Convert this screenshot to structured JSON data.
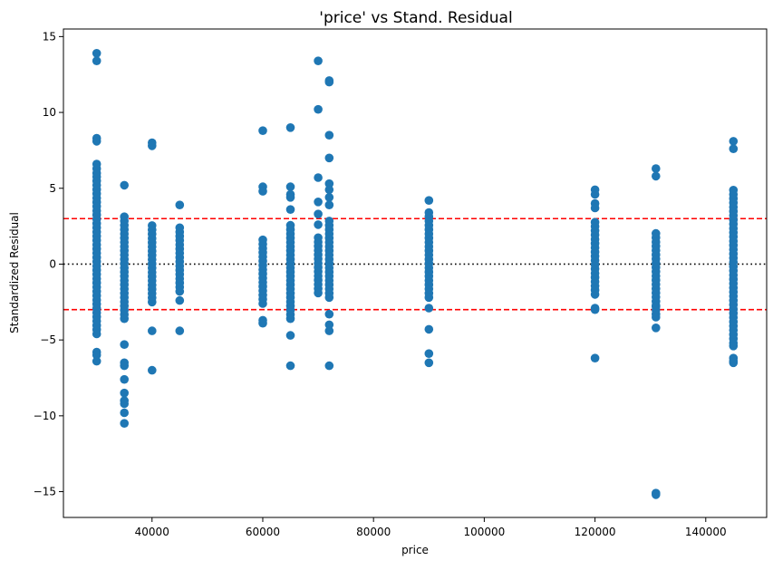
{
  "chart_data": {
    "type": "scatter",
    "title": "'price' vs Stand. Residual",
    "xlabel": "price",
    "ylabel": "Standardized Residual",
    "xlim": [
      24000,
      151000
    ],
    "ylim": [
      -16.7,
      15.5
    ],
    "xticks": [
      40000,
      60000,
      80000,
      100000,
      120000,
      140000
    ],
    "xtick_labels": [
      "40000",
      "60000",
      "80000",
      "100000",
      "120000",
      "140000"
    ],
    "yticks": [
      -15,
      -10,
      -5,
      0,
      5,
      10,
      15
    ],
    "ytick_labels": [
      "−15",
      "−10",
      "−5",
      "0",
      "5",
      "10",
      "15"
    ],
    "grid": false,
    "reference_lines": [
      {
        "y": 3,
        "style": "dashed",
        "color": "#ff0000"
      },
      {
        "y": -3,
        "style": "dashed",
        "color": "#ff0000"
      },
      {
        "y": 0,
        "style": "dotted",
        "color": "#000000"
      }
    ],
    "marker_color": "#1f77b4",
    "clusters": [
      {
        "x": 30000,
        "band": [
          -4.6,
          5.8
        ],
        "extras": [
          13.9,
          13.4,
          8.3,
          8.1,
          6.6,
          6.3,
          6.0,
          -5.8,
          -6.0,
          -6.4
        ]
      },
      {
        "x": 35000,
        "band": [
          -3.6,
          3.3
        ],
        "extras": [
          5.2,
          -5.3,
          -6.5,
          -6.7,
          -7.6,
          -8.5,
          -9.0,
          -9.2,
          -9.8,
          -10.5
        ]
      },
      {
        "x": 40000,
        "band": [
          -2.5,
          2.8
        ],
        "extras": [
          8.0,
          7.8,
          -4.4,
          -7.0
        ]
      },
      {
        "x": 45000,
        "band": [
          -1.8,
          2.4
        ],
        "extras": [
          3.9,
          -2.4,
          -4.4
        ]
      },
      {
        "x": 60000,
        "band": [
          -2.6,
          1.6
        ],
        "extras": [
          8.8,
          5.1,
          4.8,
          -3.7,
          -3.9
        ]
      },
      {
        "x": 65000,
        "band": [
          -3.6,
          2.6
        ],
        "extras": [
          9.0,
          5.1,
          4.6,
          4.4,
          3.6,
          -4.7,
          -6.7
        ]
      },
      {
        "x": 70000,
        "band": [
          -1.9,
          1.8
        ],
        "extras": [
          13.4,
          10.2,
          5.7,
          4.1,
          3.3,
          2.6
        ]
      },
      {
        "x": 72000,
        "band": [
          -2.2,
          2.9
        ],
        "extras": [
          12.1,
          12.0,
          8.5,
          7.0,
          5.3,
          4.9,
          4.4,
          3.9,
          -3.3,
          -4.0,
          -4.4,
          -6.7
        ]
      },
      {
        "x": 90000,
        "band": [
          -2.2,
          3.6
        ],
        "extras": [
          4.2,
          -2.9,
          -4.3,
          -5.9,
          -6.5
        ]
      },
      {
        "x": 120000,
        "band": [
          -2.0,
          3.0
        ],
        "extras": [
          4.9,
          4.6,
          4.0,
          3.7,
          -2.9,
          -3.0,
          -6.2
        ]
      },
      {
        "x": 131000,
        "band": [
          -3.3,
          2.1
        ],
        "extras": [
          6.3,
          5.8,
          -2.8,
          -3.5,
          -4.2,
          -15.1,
          -15.2
        ]
      },
      {
        "x": 145000,
        "band": [
          -5.2,
          5.0
        ],
        "extras": [
          8.1,
          7.6,
          -5.4,
          -6.2,
          -6.4,
          -6.5
        ]
      }
    ]
  }
}
